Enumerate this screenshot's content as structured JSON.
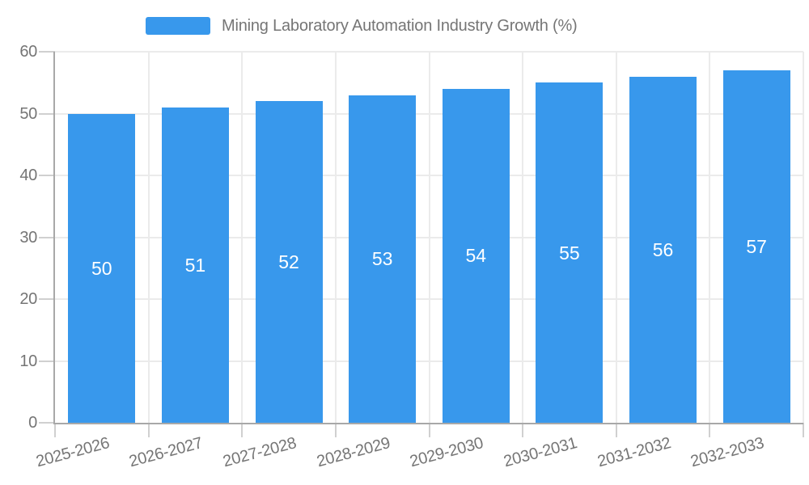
{
  "chart_data": {
    "type": "bar",
    "title": "Mining Laboratory Automation Industry Growth (%)",
    "categories": [
      "2025-2026",
      "2026-2027",
      "2027-2028",
      "2028-2029",
      "2029-2030",
      "2030-2031",
      "2031-2032",
      "2032-2033"
    ],
    "values": [
      50,
      51,
      52,
      53,
      54,
      55,
      56,
      57
    ],
    "xlabel": "",
    "ylabel": "",
    "ylim": [
      0,
      60
    ],
    "yticks": [
      0,
      10,
      20,
      30,
      40,
      50,
      60
    ],
    "grid": true,
    "legend_position": "top-center",
    "value_labels_inside_bars": true,
    "x_label_rotation_deg": -15,
    "colors": {
      "bar": "#3898ec",
      "value_label": "#ffffff",
      "axis_text": "#757575",
      "grid_line": "#ebebeb",
      "axis_line": "#a8a8a8",
      "tick_mark": "#d0d0d0",
      "background": "#ffffff"
    }
  }
}
